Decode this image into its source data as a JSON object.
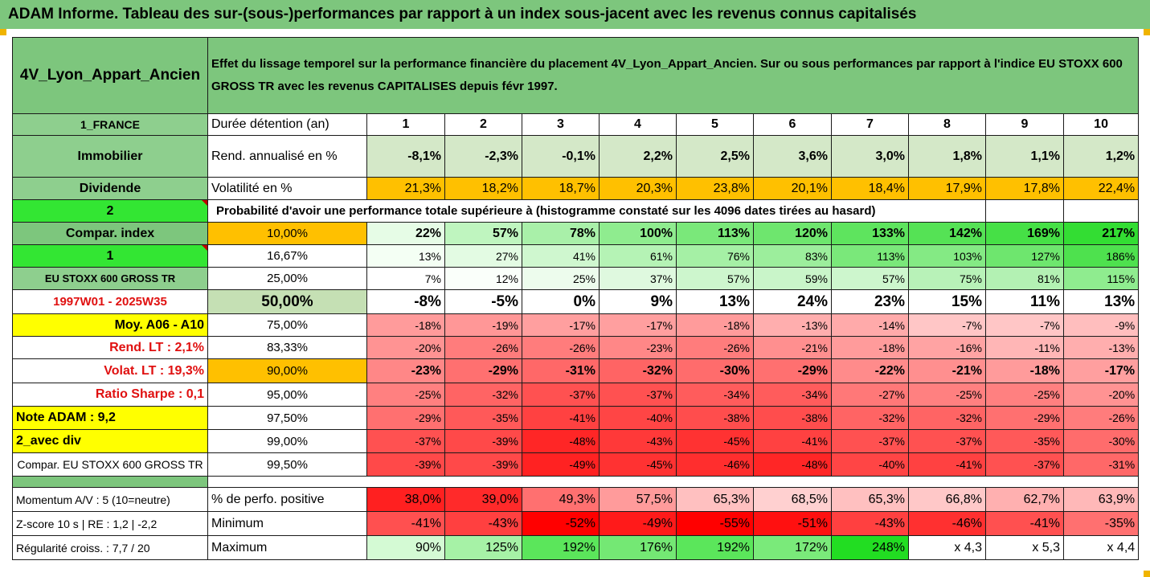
{
  "title": "ADAM Informe. Tableau des sur-(sous-)performances par rapport à un index sous-jacent avec les revenus connus capitalisés",
  "header": {
    "fund": "4V_Lyon_Appart_Ancien",
    "description": "Effet du lissage temporel sur la performance financière du placement 4V_Lyon_Appart_Ancien. Sur ou sous performances par rapport à l'indice EU STOXX 600 GROSS TR avec les revenus CAPITALISES depuis févr 1997."
  },
  "left": {
    "country": "1_FRANCE",
    "asset_class": "Immobilier",
    "dividend": "Dividende",
    "num2": "2",
    "compar_index": "Compar. index",
    "num1": "1",
    "index_name": "EU STOXX 600 GROSS TR",
    "period": "1997W01 - 2025W35",
    "moy": "Moy. A06 - A10",
    "rend_lt": "Rend. LT :    2,1%",
    "volat_lt": "Volat. LT :   19,3%",
    "sharpe": "Ratio Sharpe :   0,1",
    "note": "Note ADAM : 9,2",
    "avec_div": "2_avec div",
    "compar_full": "Compar. EU STOXX 600 GROSS TR",
    "momentum": "Momentum A/V : 5 (10=neutre)",
    "zscore": "Z-score 10 s  | RE : 1,2  | -2,2",
    "regularite": "Régularité croiss. : 7,7 / 20"
  },
  "labels": {
    "duree": "Durée détention (an)",
    "rend": "Rend. annualisé en %",
    "vol": "Volatilité en %",
    "proba": "Probabilité d'avoir une performance totale supérieure à (histogramme constaté sur les 4096 dates tirées au hasard)",
    "perfo_pos": "% de perfo. positive",
    "minimum": "Minimum",
    "maximum": "Maximum"
  },
  "years": [
    "1",
    "2",
    "3",
    "4",
    "5",
    "6",
    "7",
    "8",
    "9",
    "10"
  ],
  "rend": [
    "-8,1%",
    "-2,3%",
    "-0,1%",
    "2,2%",
    "2,5%",
    "3,6%",
    "3,0%",
    "1,8%",
    "1,1%",
    "1,2%"
  ],
  "vol": [
    "21,3%",
    "18,2%",
    "18,7%",
    "20,3%",
    "23,8%",
    "20,1%",
    "18,4%",
    "17,9%",
    "17,8%",
    "22,4%"
  ],
  "quantiles": [
    {
      "p": "10,00%",
      "v": [
        "22%",
        "57%",
        "78%",
        "100%",
        "113%",
        "120%",
        "133%",
        "142%",
        "169%",
        "217%"
      ]
    },
    {
      "p": "16,67%",
      "v": [
        "13%",
        "27%",
        "41%",
        "61%",
        "76%",
        "83%",
        "113%",
        "103%",
        "127%",
        "186%"
      ]
    },
    {
      "p": "25,00%",
      "v": [
        "7%",
        "12%",
        "25%",
        "37%",
        "57%",
        "59%",
        "57%",
        "75%",
        "81%",
        "115%"
      ]
    },
    {
      "p": "50,00%",
      "v": [
        "-8%",
        "-5%",
        "0%",
        "9%",
        "13%",
        "24%",
        "23%",
        "15%",
        "11%",
        "13%"
      ]
    },
    {
      "p": "75,00%",
      "v": [
        "-18%",
        "-19%",
        "-17%",
        "-17%",
        "-18%",
        "-13%",
        "-14%",
        "-7%",
        "-7%",
        "-9%"
      ]
    },
    {
      "p": "83,33%",
      "v": [
        "-20%",
        "-26%",
        "-26%",
        "-23%",
        "-26%",
        "-21%",
        "-18%",
        "-16%",
        "-11%",
        "-13%"
      ]
    },
    {
      "p": "90,00%",
      "v": [
        "-23%",
        "-29%",
        "-31%",
        "-32%",
        "-30%",
        "-29%",
        "-22%",
        "-21%",
        "-18%",
        "-17%"
      ]
    },
    {
      "p": "95,00%",
      "v": [
        "-25%",
        "-32%",
        "-37%",
        "-37%",
        "-34%",
        "-34%",
        "-27%",
        "-25%",
        "-25%",
        "-20%"
      ]
    },
    {
      "p": "97,50%",
      "v": [
        "-29%",
        "-35%",
        "-41%",
        "-40%",
        "-38%",
        "-38%",
        "-32%",
        "-32%",
        "-29%",
        "-26%"
      ]
    },
    {
      "p": "99,00%",
      "v": [
        "-37%",
        "-39%",
        "-48%",
        "-43%",
        "-45%",
        "-41%",
        "-37%",
        "-37%",
        "-35%",
        "-30%"
      ]
    },
    {
      "p": "99,50%",
      "v": [
        "-39%",
        "-39%",
        "-49%",
        "-45%",
        "-46%",
        "-48%",
        "-40%",
        "-41%",
        "-37%",
        "-31%"
      ]
    }
  ],
  "perfo_pos": [
    "38,0%",
    "39,0%",
    "49,3%",
    "57,5%",
    "65,3%",
    "68,5%",
    "65,3%",
    "66,8%",
    "62,7%",
    "63,9%"
  ],
  "minimum": [
    "-41%",
    "-43%",
    "-52%",
    "-49%",
    "-55%",
    "-51%",
    "-43%",
    "-46%",
    "-41%",
    "-35%"
  ],
  "maximum": [
    "90%",
    "125%",
    "192%",
    "176%",
    "192%",
    "172%",
    "248%",
    "x 4,3",
    "x 5,3",
    "x 4,4"
  ],
  "colors": {
    "dark_green": "#7dc67d",
    "orange": "#ffc000",
    "yellow": "#ffff00",
    "bright_green": "#33e633",
    "red": "#ff0000",
    "red_text": "#e01010"
  }
}
